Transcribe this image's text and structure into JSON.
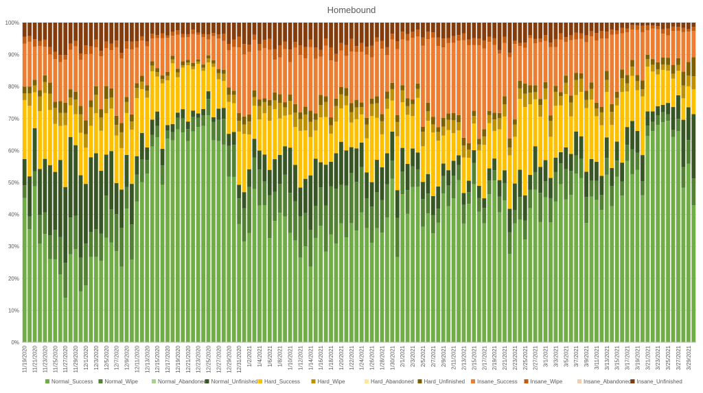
{
  "chart_data": {
    "type": "bar",
    "stacked": "percent",
    "title": "Homebound",
    "xlabel": "",
    "ylabel": "",
    "ylim": [
      0,
      100
    ],
    "y_ticks": [
      "0%",
      "10%",
      "20%",
      "30%",
      "40%",
      "50%",
      "60%",
      "70%",
      "80%",
      "90%",
      "100%"
    ],
    "grid": true,
    "legend_position": "bottom",
    "x_tick_labels": [
      "11/19/2020",
      "11/21/2020",
      "11/23/2020",
      "11/25/2020",
      "11/27/2020",
      "11/29/2020",
      "12/1/2020",
      "12/3/2020",
      "12/5/2020",
      "12/7/2020",
      "12/9/2020",
      "12/11/2020",
      "12/13/2020",
      "12/15/2020",
      "12/17/2020",
      "12/19/2020",
      "12/21/2020",
      "12/23/2020",
      "12/25/2020",
      "12/27/2020",
      "12/29/2020",
      "12/31/2020",
      "1/2/2021",
      "1/4/2021",
      "1/6/2021",
      "1/8/2021",
      "1/10/2021",
      "1/12/2021",
      "1/14/2021",
      "1/16/2021",
      "1/18/2021",
      "1/20/2021",
      "1/22/2021",
      "1/24/2021",
      "1/26/2021",
      "1/28/2021",
      "1/30/2021",
      "2/1/2021",
      "2/3/2021",
      "2/5/2021",
      "2/7/2021",
      "2/9/2021",
      "2/11/2021",
      "2/13/2021",
      "2/15/2021",
      "2/17/2021",
      "2/19/2021",
      "2/21/2021",
      "2/23/2021",
      "2/25/2021",
      "2/27/2021",
      "3/1/2021",
      "3/3/2021",
      "3/5/2021",
      "3/7/2021",
      "3/9/2021",
      "3/11/2021",
      "3/13/2021",
      "3/15/2021",
      "3/17/2021",
      "3/19/2021",
      "3/21/2021",
      "3/23/2021",
      "3/25/2021",
      "3/27/2021",
      "3/29/2021"
    ],
    "series": [
      {
        "name": "Normal_Success",
        "color": "#70AD47"
      },
      {
        "name": "Normal_Wipe",
        "color": "#548235"
      },
      {
        "name": "Normal_Abandoned",
        "color": "#A9D18E"
      },
      {
        "name": "Normal_Unfinished",
        "color": "#375623"
      },
      {
        "name": "Hard_Success",
        "color": "#FFC000"
      },
      {
        "name": "Hard_Wipe",
        "color": "#BF9000"
      },
      {
        "name": "Hard_Abandoned",
        "color": "#FFE699"
      },
      {
        "name": "Hard_Unfinished",
        "color": "#7F6000"
      },
      {
        "name": "Insane_Success",
        "color": "#ED7D31"
      },
      {
        "name": "Insane_Wipe",
        "color": "#C55A11"
      },
      {
        "name": "Insane_Abandoned",
        "color": "#F8CBAD"
      },
      {
        "name": "Insane_Unfinished",
        "color": "#843C0C"
      }
    ],
    "anchor_days": [
      0,
      7,
      14,
      21,
      28,
      35,
      42,
      49,
      56,
      63,
      70,
      77,
      84,
      91,
      98,
      105,
      112,
      119,
      126,
      131
    ],
    "anchor_stacks": [
      [
        47,
        4,
        0,
        8,
        18,
        3,
        0,
        2,
        12,
        2,
        0,
        4
      ],
      [
        22,
        10,
        0,
        25,
        14,
        4,
        0,
        3,
        12,
        2,
        0,
        8
      ],
      [
        25,
        10,
        0,
        20,
        12,
        5,
        0,
        3,
        16,
        2,
        0,
        7
      ],
      [
        38,
        8,
        0,
        10,
        14,
        3,
        0,
        2,
        16,
        2,
        0,
        7
      ],
      [
        68,
        3,
        0,
        2,
        14,
        1,
        0,
        1,
        7,
        1,
        0,
        3
      ],
      [
        68,
        4,
        0,
        2,
        14,
        1,
        0,
        1,
        7,
        1,
        0,
        3
      ],
      [
        42,
        10,
        0,
        4,
        14,
        3,
        0,
        2,
        16,
        3,
        0,
        6
      ],
      [
        38,
        10,
        0,
        10,
        12,
        4,
        0,
        2,
        14,
        3,
        0,
        7
      ],
      [
        28,
        12,
        0,
        12,
        14,
        4,
        0,
        3,
        17,
        3,
        0,
        7
      ],
      [
        42,
        12,
        0,
        10,
        10,
        3,
        0,
        2,
        12,
        3,
        0,
        6
      ],
      [
        38,
        10,
        0,
        8,
        14,
        4,
        0,
        2,
        16,
        2,
        0,
        6
      ],
      [
        46,
        6,
        0,
        6,
        16,
        3,
        0,
        2,
        16,
        2,
        0,
        3
      ],
      [
        44,
        5,
        0,
        4,
        8,
        3,
        0,
        2,
        28,
        2,
        0,
        4
      ],
      [
        45,
        4,
        0,
        3,
        12,
        3,
        0,
        2,
        22,
        2,
        0,
        7
      ],
      [
        40,
        5,
        0,
        8,
        22,
        3,
        0,
        2,
        13,
        1,
        0,
        6
      ],
      [
        44,
        8,
        0,
        6,
        14,
        4,
        0,
        2,
        16,
        2,
        0,
        4
      ],
      [
        46,
        6,
        0,
        6,
        16,
        3,
        0,
        2,
        16,
        2,
        0,
        3
      ],
      [
        55,
        6,
        0,
        6,
        14,
        3,
        0,
        2,
        12,
        1,
        0,
        1
      ],
      [
        65,
        2,
        0,
        3,
        12,
        2,
        0,
        2,
        10,
        2,
        0,
        2
      ],
      [
        43,
        8,
        0,
        18,
        7,
        5,
        0,
        6,
        10,
        1,
        0,
        2
      ]
    ]
  },
  "legend": {
    "items": [
      {
        "label": "Normal_Success",
        "color": "#70AD47"
      },
      {
        "label": "Normal_Wipe",
        "color": "#548235"
      },
      {
        "label": "Normal_Abandoned",
        "color": "#A9D18E"
      },
      {
        "label": "Normal_Unfinished",
        "color": "#375623"
      },
      {
        "label": "Hard_Success",
        "color": "#FFC000"
      },
      {
        "label": "Hard_Wipe",
        "color": "#BF9000"
      },
      {
        "label": "Hard_Abandoned",
        "color": "#FFE699"
      },
      {
        "label": "Hard_Unfinished",
        "color": "#7F6000"
      },
      {
        "label": "Insane_Success",
        "color": "#ED7D31"
      },
      {
        "label": "Insane_Wipe",
        "color": "#C55A11"
      },
      {
        "label": "Insane_Abandoned",
        "color": "#F8CBAD"
      },
      {
        "label": "Insane_Unfinished",
        "color": "#843C0C"
      }
    ]
  }
}
